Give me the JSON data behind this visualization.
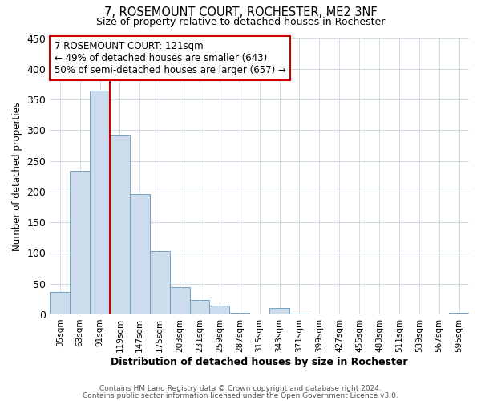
{
  "title": "7, ROSEMOUNT COURT, ROCHESTER, ME2 3NF",
  "subtitle": "Size of property relative to detached houses in Rochester",
  "xlabel": "Distribution of detached houses by size in Rochester",
  "ylabel": "Number of detached properties",
  "bar_labels": [
    "35sqm",
    "63sqm",
    "91sqm",
    "119sqm",
    "147sqm",
    "175sqm",
    "203sqm",
    "231sqm",
    "259sqm",
    "287sqm",
    "315sqm",
    "343sqm",
    "371sqm",
    "399sqm",
    "427sqm",
    "455sqm",
    "483sqm",
    "511sqm",
    "539sqm",
    "567sqm",
    "595sqm"
  ],
  "bar_values": [
    36,
    234,
    364,
    293,
    196,
    103,
    45,
    23,
    14,
    3,
    0,
    10,
    1,
    0,
    0,
    0,
    0,
    0,
    0,
    0,
    2
  ],
  "bar_color": "#ccdcec",
  "bar_edge_color": "#6699bb",
  "property_line_index": 3,
  "ylim": [
    0,
    450
  ],
  "yticks": [
    0,
    50,
    100,
    150,
    200,
    250,
    300,
    350,
    400,
    450
  ],
  "annotation_title": "7 ROSEMOUNT COURT: 121sqm",
  "annotation_line1": "← 49% of detached houses are smaller (643)",
  "annotation_line2": "50% of semi-detached houses are larger (657) →",
  "box_facecolor": "#ffffff",
  "box_edgecolor": "#cc0000",
  "line_color": "#cc0000",
  "footer1": "Contains HM Land Registry data © Crown copyright and database right 2024.",
  "footer2": "Contains public sector information licensed under the Open Government Licence v3.0."
}
